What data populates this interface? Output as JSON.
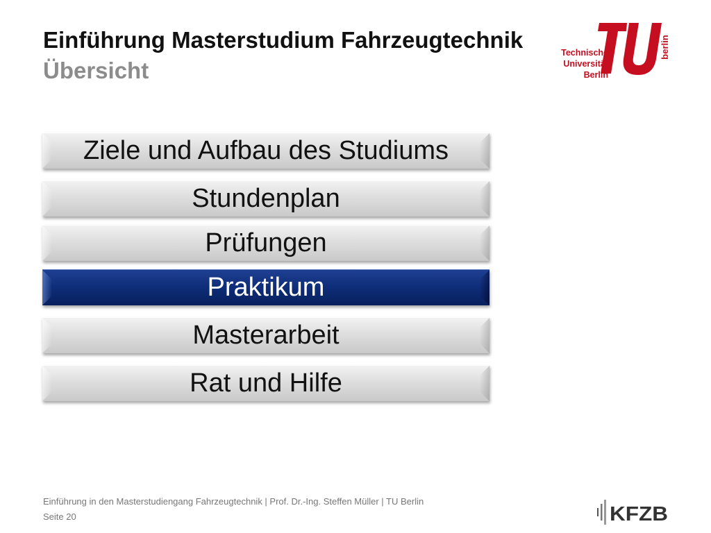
{
  "slide": {
    "title": "Einführung Masterstudium Fahrzeugtechnik",
    "subtitle": "Übersicht"
  },
  "logo": {
    "line1": "Technische",
    "line2": "Universität",
    "line3": "Berlin",
    "vertical": "berlin",
    "color": "#c50e1f"
  },
  "menu": {
    "items": [
      {
        "label": "Ziele und Aufbau des Studiums",
        "active": false
      },
      {
        "label": "Stundenplan",
        "active": false
      },
      {
        "label": "Prüfungen",
        "active": false
      },
      {
        "label": "Praktikum",
        "active": true
      },
      {
        "label": "Masterarbeit",
        "active": false
      },
      {
        "label": "Rat und Hilfe",
        "active": false
      }
    ],
    "active_color": "#0e2d78"
  },
  "footer": {
    "text": "Einführung in den Masterstudiengang Fahrzeugtechnik | Prof. Dr.-Ing. Steffen Müller | TU Berlin",
    "page": "Seite 20"
  },
  "kfzb_logo": {
    "text": "KFZB"
  }
}
